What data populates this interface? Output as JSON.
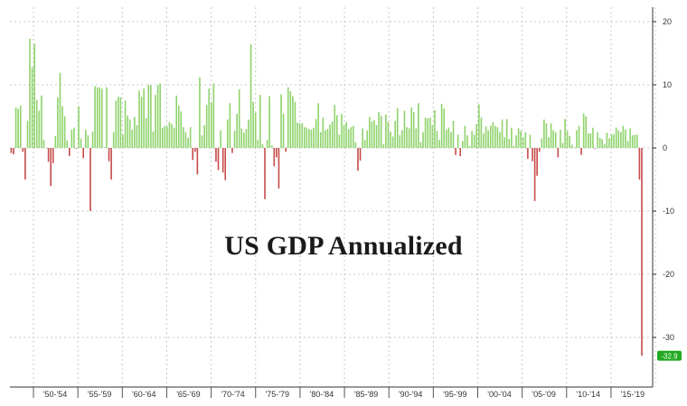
{
  "chart_data": {
    "type": "bar",
    "title": "US GDP Annualized",
    "xlabel": "",
    "ylabel": "",
    "ylim": [
      -37,
      21
    ],
    "y_ticks": [
      20,
      10,
      0,
      -10,
      -20,
      -30
    ],
    "x_ticks": [
      "'50-'54",
      "'55-'59",
      "'60-'64",
      "'65-'69",
      "'70-'74",
      "'75-'79",
      "'80-'84",
      "'85-'89",
      "'90-'94",
      "'95-'99",
      "'00-'04",
      "'05-'09",
      "'10-'14",
      "'15-'19"
    ],
    "last_value_label": "-32.9",
    "colors": {
      "positive": "#8fd36c",
      "negative": "#c84a4a",
      "badge": "#22aa22",
      "grid": "#c8c8c8"
    },
    "grid": true,
    "y_axis_position": "right",
    "x_start": 1947.5,
    "values": [
      -0.8,
      -1,
      6.4,
      6.2,
      6.7,
      -0.6,
      -5,
      4.3,
      17.3,
      12.8,
      16.5,
      7.6,
      5.9,
      8.3,
      1.3,
      0,
      -2.2,
      -6,
      -2.4,
      1.9,
      8,
      11.9,
      6.6,
      5,
      1.2,
      -1.3,
      2.9,
      3.2,
      -0.1,
      6.6,
      1.5,
      -1.6,
      2.9,
      2,
      -10,
      2.6,
      9.8,
      9.6,
      9.6,
      9.4,
      0.1,
      9.6,
      -2.1,
      -5,
      2.5,
      7.5,
      8.1,
      8,
      2.1,
      7.5,
      5.1,
      4.5,
      2.9,
      4.9,
      3.6,
      9.1,
      8.1,
      9.4,
      4.7,
      10,
      9.9,
      2.6,
      8.4,
      10,
      10.2,
      3.2,
      3.5,
      3.4,
      4.1,
      3.8,
      3.2,
      8.3,
      6.7,
      5.8,
      3.3,
      2.5,
      1.6,
      3.3,
      -1.9,
      -0.6,
      -4.2,
      11.2,
      2,
      3.6,
      6.8,
      9.4,
      7.2,
      10.2,
      -2.2,
      -3.5,
      2.8,
      -3.9,
      -5.1,
      4.5,
      7.1,
      -0.8,
      2.7,
      5.4,
      9.3,
      3.1,
      2.4,
      3,
      4.5,
      16.4,
      7.3,
      5.6,
      1.3,
      8.4,
      0.6,
      -8.1,
      1.3,
      8.2,
      0.4,
      -2.9,
      -1.5,
      -6.4,
      8.5,
      5.4,
      -0.6,
      9.6,
      9,
      8.2,
      7.3,
      4,
      3.9,
      3.9,
      3.3,
      3.2,
      3,
      2.9,
      3.2,
      4.6,
      7.1,
      2.5,
      4.8,
      2.8,
      3,
      3.7,
      4.2,
      6.8,
      5.2,
      2.1,
      5.4,
      3.6,
      4.1,
      3,
      3.3,
      3.5,
      0.9,
      -3.6,
      -2,
      3.1,
      1.3,
      2.8,
      4.9,
      4.2,
      4.4,
      3.6,
      5.7,
      5.1,
      0.6,
      5.3,
      4.1,
      2.6,
      1.8,
      4.3,
      6.3,
      2,
      2.8,
      5.9,
      3.3,
      3.1,
      6.4,
      5.7,
      3.1,
      7.1,
      0.9,
      2.5,
      4.8,
      4.7,
      4.8,
      3.6,
      6,
      2.7,
      1.3,
      7,
      6.2,
      2.9,
      3.2,
      2.5,
      4.3,
      -1.1,
      2.1,
      -1.3,
      1.1,
      3.5,
      2,
      0.3,
      2.7,
      2.1,
      3.8,
      6.9,
      4.8,
      2.3,
      3.4,
      2.8,
      3.5,
      4.1,
      3.5,
      3.3,
      2.5,
      4.5,
      1.7,
      4.6,
      1.4,
      3.2,
      0.3,
      2,
      3.1,
      2.7,
      1.7,
      2.5,
      -1.7,
      2.1,
      -2.1,
      -8.4,
      -4.4,
      -0.6,
      1.5,
      4.5,
      3.9,
      1.7,
      3.9,
      2.8,
      2.5,
      -1.5,
      2.9,
      0.8,
      4.6,
      2.7,
      1.9,
      0.5,
      0.1,
      2.8,
      3.5,
      -1.1,
      5.5,
      5,
      2.3,
      2.3,
      3.2,
      -0.1,
      2.5,
      1.6,
      1.4,
      0.6,
      2.4,
      1.5,
      2.2,
      2.2,
      3.2,
      2.8,
      2.5,
      3.5,
      2.9,
      1.1,
      3.1,
      2,
      2.1,
      2.1,
      -5,
      -32.9
    ]
  }
}
